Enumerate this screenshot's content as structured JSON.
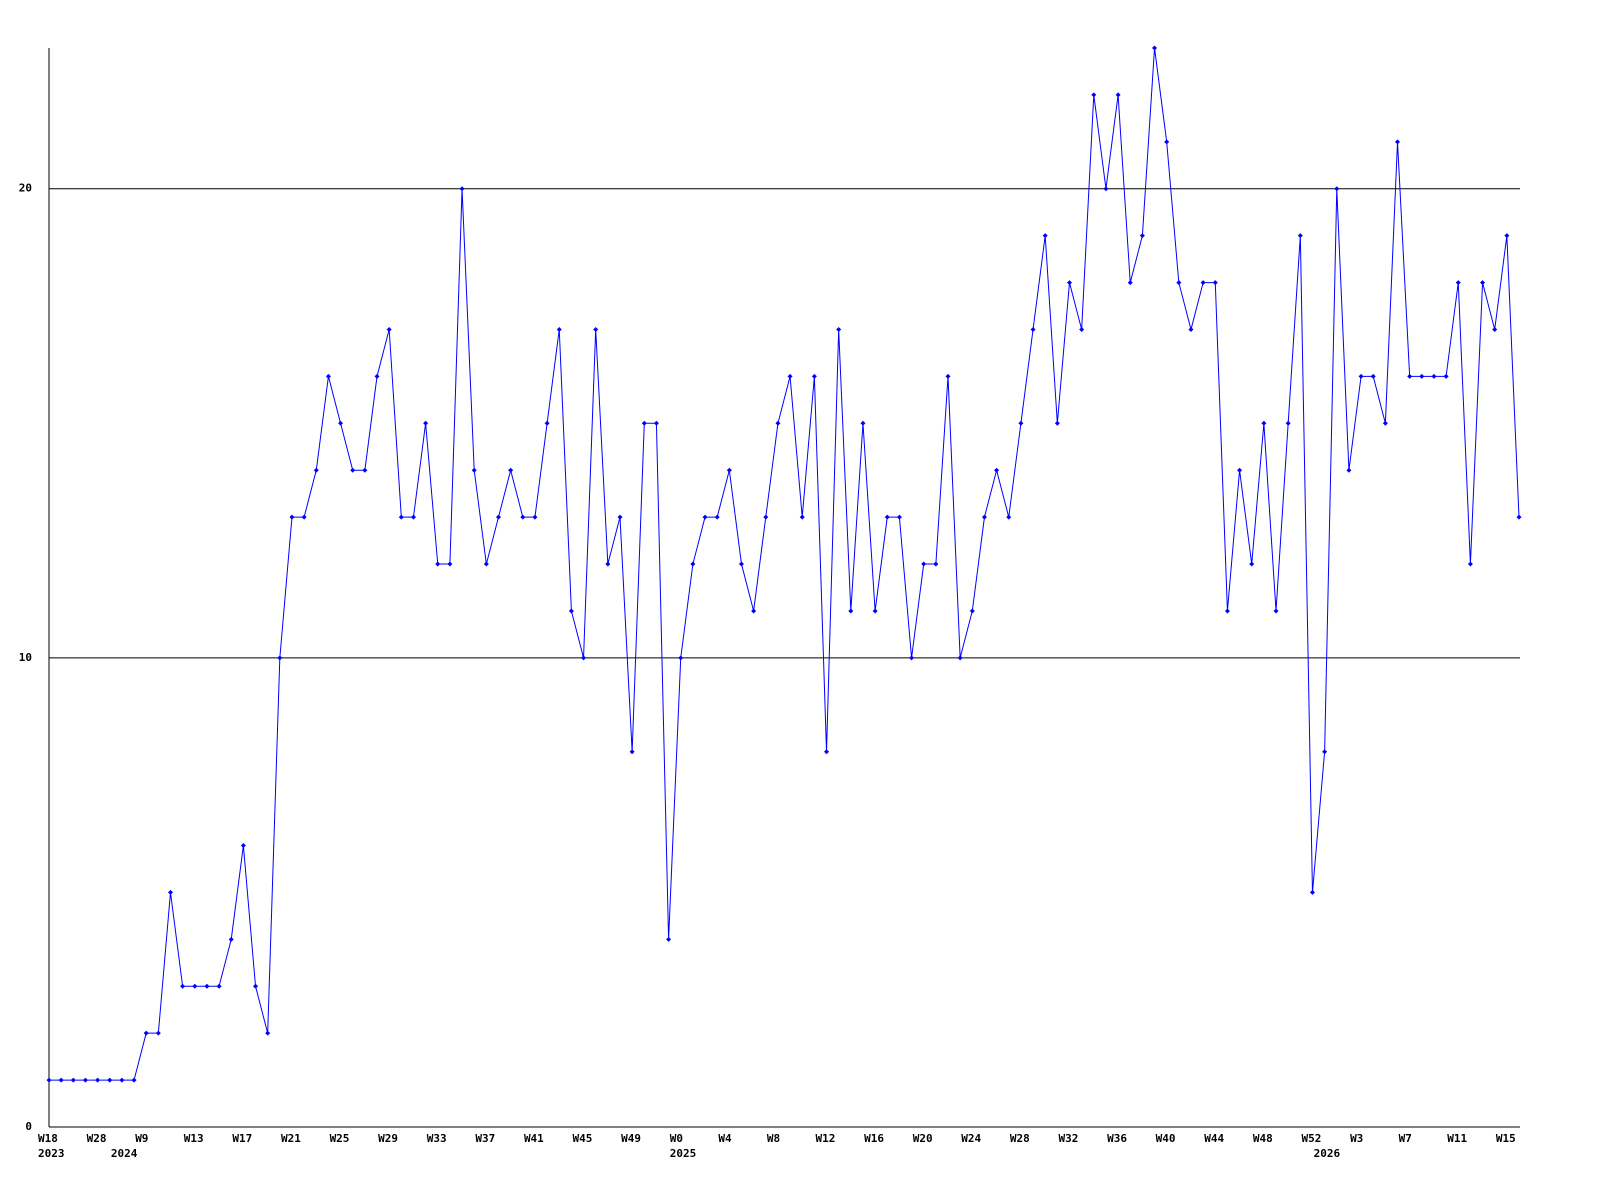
{
  "chart_data": {
    "type": "line",
    "categories": [
      "W18",
      null,
      null,
      null,
      "W28",
      null,
      null,
      null,
      "W9",
      null,
      null,
      null,
      "W13",
      null,
      null,
      null,
      "W17",
      null,
      null,
      null,
      "W21",
      null,
      null,
      null,
      "W25",
      null,
      null,
      null,
      "W29",
      null,
      null,
      null,
      "W33",
      null,
      null,
      null,
      "W37",
      null,
      null,
      null,
      "W41",
      null,
      null,
      null,
      "W45",
      null,
      null,
      null,
      "W49",
      null,
      null,
      null,
      "W0",
      null,
      null,
      null,
      "W4",
      null,
      null,
      null,
      "W8",
      null,
      null,
      null,
      "W12",
      null,
      null,
      null,
      "W16",
      null,
      null,
      null,
      "W20",
      null,
      null,
      null,
      "W24",
      null,
      null,
      null,
      "W28",
      null,
      null,
      null,
      "W32",
      null,
      null,
      null,
      "W36",
      null,
      null,
      null,
      "W40",
      null,
      null,
      null,
      "W44",
      null,
      null,
      null,
      "W48",
      null,
      null,
      null,
      "W52",
      null,
      null,
      null,
      "W3",
      null,
      null,
      null,
      "W7",
      null,
      null,
      null,
      "W11",
      null,
      null,
      null,
      "W15",
      null
    ],
    "year_labels": [
      "2023",
      null,
      null,
      null,
      null,
      null,
      "2024",
      null,
      null,
      null,
      null,
      null,
      null,
      null,
      null,
      null,
      null,
      null,
      null,
      null,
      null,
      null,
      null,
      null,
      null,
      null,
      null,
      null,
      null,
      null,
      null,
      null,
      null,
      null,
      null,
      null,
      null,
      null,
      null,
      null,
      null,
      null,
      null,
      null,
      null,
      null,
      null,
      null,
      null,
      null,
      null,
      null,
      "2025",
      null,
      null,
      null,
      null,
      null,
      null,
      null,
      null,
      null,
      null,
      null,
      null,
      null,
      null,
      null,
      null,
      null,
      null,
      null,
      null,
      null,
      null,
      null,
      null,
      null,
      null,
      null,
      null,
      null,
      null,
      null,
      null,
      null,
      null,
      null,
      null,
      null,
      null,
      null,
      null,
      null,
      null,
      null,
      null,
      null,
      null,
      null,
      null,
      null,
      null,
      null,
      null,
      "2026",
      null,
      null,
      null,
      null,
      null,
      null,
      null,
      null,
      null,
      null,
      null,
      null,
      null,
      null,
      null,
      null
    ],
    "values": [
      1,
      1,
      1,
      1,
      1,
      1,
      1,
      1,
      2,
      2,
      5,
      3,
      3,
      3,
      3,
      4,
      6,
      3,
      2,
      10,
      13,
      13,
      14,
      16,
      15,
      14,
      14,
      16,
      17,
      13,
      13,
      15,
      12,
      12,
      20,
      14,
      12,
      13,
      14,
      13,
      13,
      15,
      17,
      11,
      10,
      17,
      12,
      13,
      8,
      15,
      15,
      4,
      10,
      12,
      13,
      13,
      14,
      12,
      11,
      13,
      15,
      16,
      13,
      16,
      8,
      17,
      11,
      15,
      11,
      13,
      13,
      10,
      12,
      12,
      16,
      10,
      11,
      13,
      14,
      13,
      15,
      17,
      19,
      15,
      18,
      17,
      22,
      20,
      22,
      18,
      19,
      23,
      21,
      18,
      17,
      18,
      18,
      11,
      14,
      12,
      15,
      11,
      15,
      19,
      5,
      8,
      20,
      14,
      16,
      16,
      15,
      21,
      16,
      16,
      16,
      16,
      18,
      12,
      18,
      17,
      19,
      13
    ],
    "color": "#0000ff",
    "ylim": [
      0,
      23
    ],
    "yticks": [
      0,
      10,
      20
    ],
    "grid": true
  }
}
